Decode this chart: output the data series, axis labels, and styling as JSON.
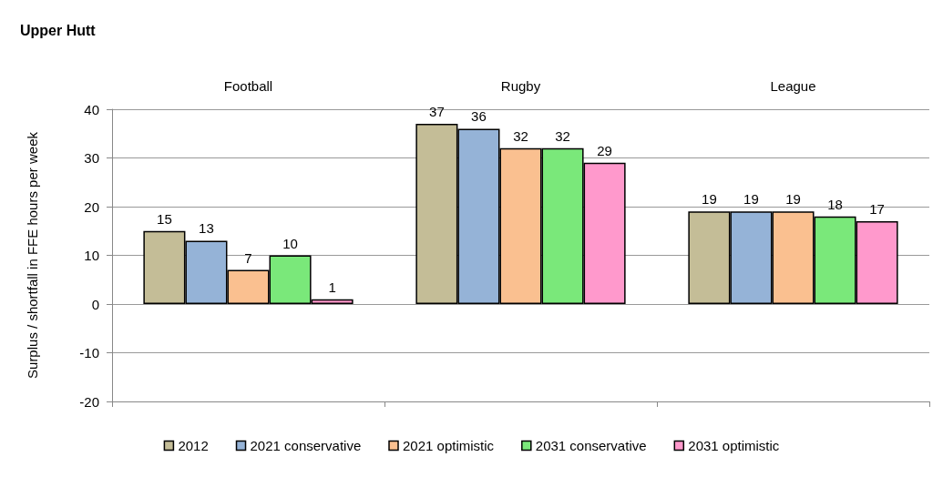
{
  "chart_data": {
    "type": "bar",
    "title": "Upper Hutt",
    "ylabel": "Surplus / shortfall in FFE hours per week",
    "categories": [
      "Football",
      "Rugby",
      "League"
    ],
    "series": [
      {
        "name": "2012",
        "color": "#c4bd97",
        "values": [
          15,
          37,
          19
        ]
      },
      {
        "name": "2021 conservative",
        "color": "#95b3d7",
        "values": [
          13,
          36,
          19
        ]
      },
      {
        "name": "2021 optimistic",
        "color": "#fac090",
        "values": [
          7,
          32,
          19
        ]
      },
      {
        "name": "2031 conservative",
        "color": "#7ae87a",
        "values": [
          10,
          32,
          18
        ]
      },
      {
        "name": "2031 optimistic",
        "color": "#ff99cc",
        "values": [
          1,
          29,
          17
        ]
      }
    ],
    "ylim": [
      -20,
      40
    ],
    "yticks": [
      -20,
      -10,
      0,
      10,
      20,
      30,
      40
    ],
    "grid": "y",
    "legend": "bottom",
    "data_labels": true
  }
}
